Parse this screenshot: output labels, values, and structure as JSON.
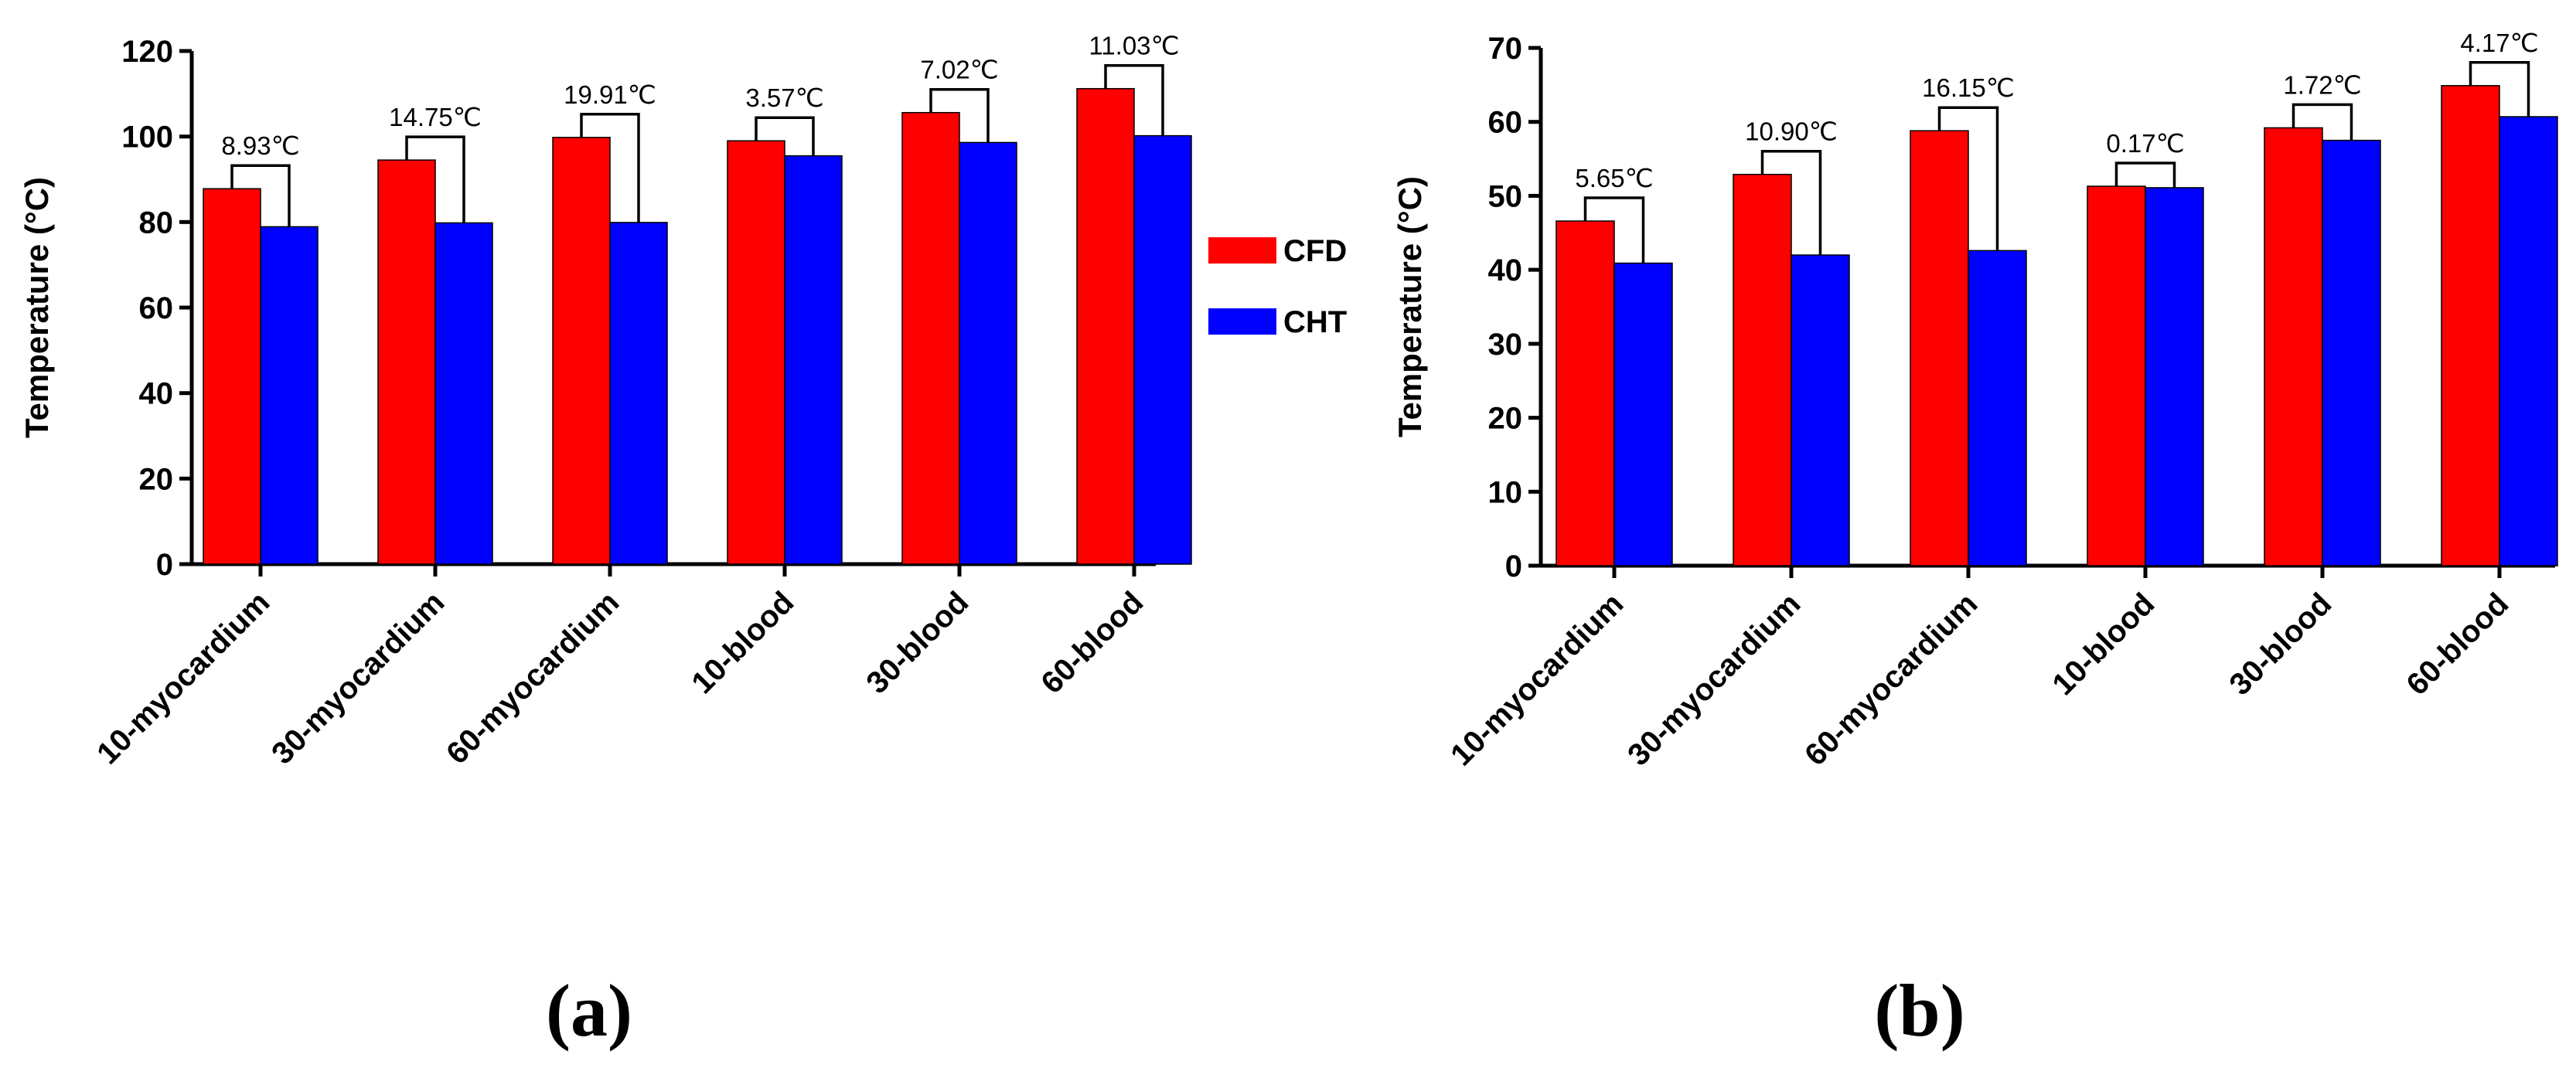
{
  "legend": {
    "items": [
      {
        "label": "CFD",
        "color": "#ff0000"
      },
      {
        "label": "CHT",
        "color": "#0000ff"
      }
    ]
  },
  "chart_data": [
    {
      "type": "bar",
      "panel_label": "(a)",
      "ylabel": "Temperature (°C)",
      "xlabel": "",
      "ylim": [
        0,
        120
      ],
      "yticks": [
        0,
        20,
        40,
        60,
        80,
        100,
        120
      ],
      "categories": [
        "10-myocardium",
        "30-myocardium",
        "60-myocardium",
        "10-blood",
        "30-blood",
        "60-blood"
      ],
      "series": [
        {
          "name": "CFD",
          "color": "#ff0000",
          "values": [
            87.8,
            94.5,
            99.8,
            99.0,
            105.6,
            111.2
          ]
        },
        {
          "name": "CHT",
          "color": "#0000ff",
          "values": [
            78.9,
            79.8,
            79.9,
            95.5,
            98.6,
            100.2
          ]
        }
      ],
      "annotations": [
        "8.93℃",
        "14.75℃",
        "19.91℃",
        "3.57℃",
        "7.02℃",
        "11.03℃"
      ]
    },
    {
      "type": "bar",
      "panel_label": "(b)",
      "ylabel": "Temperature (°C)",
      "xlabel": "",
      "ylim": [
        0,
        70
      ],
      "yticks": [
        0,
        10,
        20,
        30,
        40,
        50,
        60,
        70
      ],
      "categories": [
        "10-myocardium",
        "30-myocardium",
        "60-myocardium",
        "10-blood",
        "30-blood",
        "60-blood"
      ],
      "series": [
        {
          "name": "CFD",
          "color": "#ff0000",
          "values": [
            46.6,
            52.9,
            58.8,
            51.3,
            59.2,
            64.9
          ]
        },
        {
          "name": "CHT",
          "color": "#0000ff",
          "values": [
            40.9,
            42.0,
            42.6,
            51.1,
            57.5,
            60.7
          ]
        }
      ],
      "annotations": [
        "5.65℃",
        "10.90℃",
        "16.15℃",
        "0.17℃",
        "1.72℃",
        "4.17℃"
      ]
    }
  ]
}
